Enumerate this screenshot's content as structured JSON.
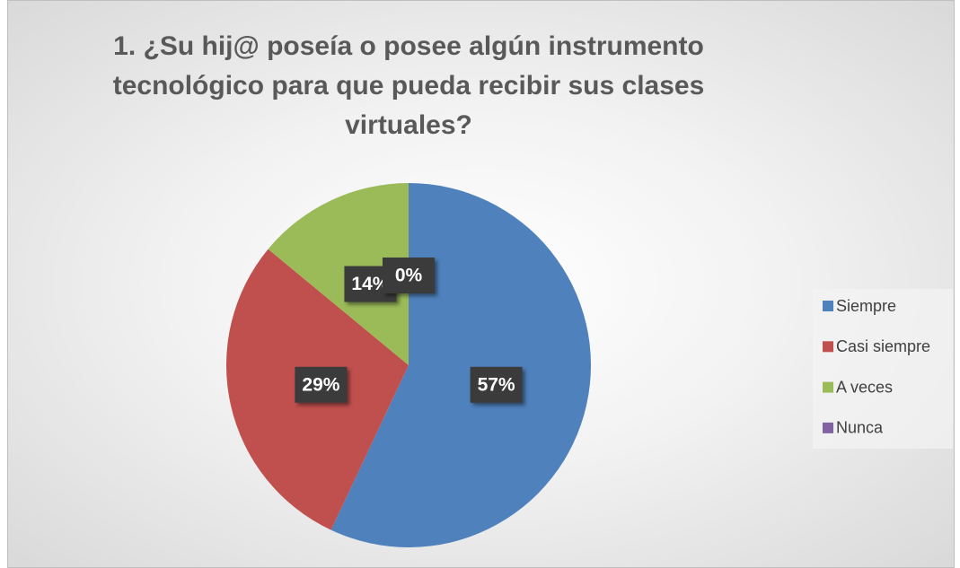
{
  "chart_data": {
    "type": "pie",
    "title": "1. ¿Su hij@ poseía o posee algún instrumento tecnológico para que pueda recibir sus clases virtuales?",
    "categories": [
      "Siempre",
      "Casi siempre",
      "A veces",
      "Nunca"
    ],
    "values": [
      57,
      29,
      14,
      0
    ],
    "value_labels": [
      "57%",
      "29%",
      "14%",
      "0%"
    ],
    "colors": [
      "#4f81bd",
      "#c0504d",
      "#9bbb59",
      "#8064a2"
    ],
    "legend": "right"
  }
}
